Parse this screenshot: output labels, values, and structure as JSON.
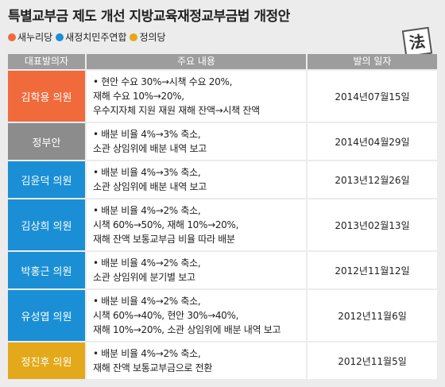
{
  "title": "특별교부금 제도 개선 지방교육재정교부금법 개정안",
  "icon": "法",
  "legend": [
    {
      "name": "새누리당",
      "color": "#f06a3c"
    },
    {
      "name": "새정치민주연합",
      "color": "#1a8fd5"
    },
    {
      "name": "정의당",
      "color": "#e3a91b"
    }
  ],
  "table": {
    "headers": [
      "대표발의자",
      "주요 내용",
      "발의 일자"
    ],
    "rows": [
      {
        "proposer": "김학용 의원",
        "color": "#f06a3c",
        "content": [
          "• 현안 수요 30%→시책 수요 20%,",
          "재해 수요 10%→20%,",
          "우수지자체 지원 재원 재해 잔액→시책 잔액"
        ],
        "date": "2014년07월15일"
      },
      {
        "proposer": "정부안",
        "color": "#8c8c8c",
        "content": [
          "• 배분 비율 4%→3% 축소,",
          "소관 상임위에 배분 내역 보고"
        ],
        "date": "2014년04월29일"
      },
      {
        "proposer": "김윤덕 의원",
        "color": "#1a8fd5",
        "content": [
          "• 배분 비율 4%→3% 축소,",
          "소관 상임위에 배분 내역 보고"
        ],
        "date": "2013년12월26일"
      },
      {
        "proposer": "김상희 의원",
        "color": "#1a8fd5",
        "content": [
          "• 배분 비율 4%→2% 축소,",
          "시책 60%→50%, 재해 10%→20%,",
          "재해 잔액 보통교부금 비율 따라 배분"
        ],
        "date": "2013년02월13일"
      },
      {
        "proposer": "박홍근 의원",
        "color": "#1a8fd5",
        "content": [
          "• 배분 비율 4%→2% 축소,",
          "소관 상임위에 분기별 보고"
        ],
        "date": "2012년11월12일"
      },
      {
        "proposer": "유성엽 의원",
        "color": "#1a8fd5",
        "content": [
          "• 배분 비율 4%→2% 축소,",
          "시책 60%→40%, 현안 30%→40%,",
          "재해 10%→20%, 소관 상임위에 배분 내역 보고"
        ],
        "date": "2012년11월6일"
      },
      {
        "proposer": "정진후 의원",
        "color": "#e3a91b",
        "content": [
          "• 배분 비율 4%→2% 축소,",
          "재해 잔액 보통교부금으로 전환"
        ],
        "date": "2012년11월5일"
      }
    ]
  }
}
